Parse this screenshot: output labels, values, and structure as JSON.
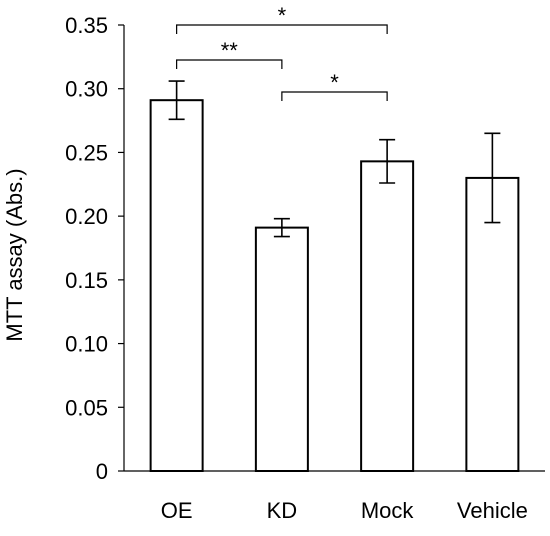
{
  "chart_data": {
    "type": "bar",
    "title": "",
    "xlabel": "",
    "ylabel": "MTT assay (Abs.)",
    "ylim": [
      0,
      0.35
    ],
    "yticks": [
      "0",
      "0.05",
      "0.10",
      "0.15",
      "0.20",
      "0.25",
      "0.30",
      "0.35"
    ],
    "ytick_values": [
      0,
      0.05,
      0.1,
      0.15,
      0.2,
      0.25,
      0.3,
      0.35
    ],
    "grid": false,
    "categories": [
      "OE",
      "KD",
      "Mock",
      "Vehicle"
    ],
    "values": [
      0.291,
      0.191,
      0.243,
      0.23
    ],
    "errors": [
      0.015,
      0.007,
      0.017,
      0.035
    ],
    "bar_fill": "#ffffff",
    "bar_stroke": "#000000",
    "significance": [
      {
        "from": "OE",
        "to": "Mock",
        "label": "*"
      },
      {
        "from": "OE",
        "to": "KD",
        "label": "**"
      },
      {
        "from": "KD",
        "to": "Mock",
        "label": "*"
      }
    ]
  }
}
